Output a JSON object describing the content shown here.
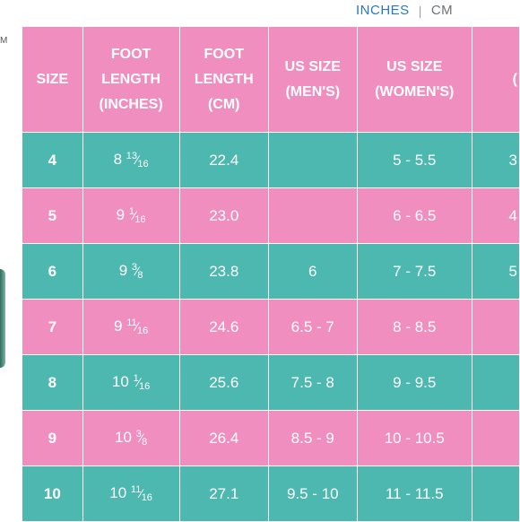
{
  "left_strip_text": "M",
  "unit_toggle": {
    "active": "INCHES",
    "separator": "|",
    "inactive": "CM"
  },
  "columns": [
    [
      "SIZE"
    ],
    [
      "FOOT",
      "LENGTH",
      "(INCHES)"
    ],
    [
      "FOOT",
      "LENGTH",
      "(CM)"
    ],
    [
      "US SIZE",
      "(MEN'S)"
    ],
    [
      "US SIZE",
      "(WOMEN'S)"
    ],
    [
      "",
      "("
    ]
  ],
  "rows": [
    {
      "size": "4",
      "inch_whole": "8",
      "inch_num": "13",
      "inch_den": "16",
      "cm": "22.4",
      "men": "",
      "women": "5 - 5.5",
      "extra": "3"
    },
    {
      "size": "5",
      "inch_whole": "9",
      "inch_num": "1",
      "inch_den": "16",
      "cm": "23.0",
      "men": "",
      "women": "6 - 6.5",
      "extra": "4"
    },
    {
      "size": "6",
      "inch_whole": "9",
      "inch_num": "3",
      "inch_den": "8",
      "cm": "23.8",
      "men": "6",
      "women": "7 - 7.5",
      "extra": "5"
    },
    {
      "size": "7",
      "inch_whole": "9",
      "inch_num": "11",
      "inch_den": "16",
      "cm": "24.6",
      "men": "6.5 - 7",
      "women": "8 - 8.5",
      "extra": ""
    },
    {
      "size": "8",
      "inch_whole": "10",
      "inch_num": "1",
      "inch_den": "16",
      "cm": "25.6",
      "men": "7.5 - 8",
      "women": "9 - 9.5",
      "extra": ""
    },
    {
      "size": "9",
      "inch_whole": "10",
      "inch_num": "3",
      "inch_den": "8",
      "cm": "26.4",
      "men": "8.5 - 9",
      "women": "10 - 10.5",
      "extra": ""
    },
    {
      "size": "10",
      "inch_whole": "10",
      "inch_num": "11",
      "inch_den": "16",
      "cm": "27.1",
      "men": "9.5 - 10",
      "women": "11 - 11.5",
      "extra": ""
    }
  ],
  "colors": {
    "pink": "#f08fbf",
    "teal": "#4db8b0",
    "link_blue": "#2a78b5"
  }
}
